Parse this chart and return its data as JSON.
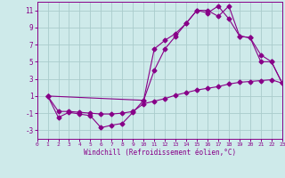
{
  "bg_color": "#ceeaea",
  "grid_color": "#aacccc",
  "line_color": "#880088",
  "xlabel": "Windchill (Refroidissement éolien,°C)",
  "ylim": [
    -4,
    12
  ],
  "xlim": [
    0,
    23
  ],
  "yticks": [
    -3,
    -1,
    1,
    3,
    5,
    7,
    9,
    11
  ],
  "xticks": [
    0,
    1,
    2,
    3,
    4,
    5,
    6,
    7,
    8,
    9,
    10,
    11,
    12,
    13,
    14,
    15,
    16,
    17,
    18,
    19,
    20,
    21,
    22,
    23
  ],
  "line1_x": [
    1,
    2,
    3,
    4,
    5,
    6,
    7,
    8,
    9,
    10,
    11,
    12,
    13,
    14,
    15,
    16,
    17,
    18,
    19,
    20,
    21,
    22,
    23
  ],
  "line1_y": [
    1.0,
    -1.5,
    -0.9,
    -1.1,
    -1.3,
    -2.7,
    -2.4,
    -2.2,
    -0.9,
    0.5,
    4.0,
    6.5,
    8.0,
    9.5,
    11.0,
    11.0,
    10.3,
    11.5,
    8.0,
    7.8,
    5.0,
    5.0,
    2.5
  ],
  "line2_x": [
    1,
    2,
    3,
    4,
    5,
    6,
    7,
    8,
    9,
    10,
    11,
    12,
    13,
    14,
    15,
    16,
    17,
    18,
    19,
    20,
    21,
    22,
    23
  ],
  "line2_y": [
    1.0,
    -0.8,
    -0.8,
    -0.9,
    -1.0,
    -1.1,
    -1.1,
    -1.0,
    -0.8,
    0.1,
    0.4,
    0.7,
    1.1,
    1.4,
    1.7,
    1.9,
    2.1,
    2.4,
    2.6,
    2.7,
    2.8,
    2.9,
    2.5
  ],
  "line3_x": [
    1,
    10,
    11,
    12,
    13,
    14,
    15,
    16,
    17,
    18,
    19,
    20,
    21,
    22,
    23
  ],
  "line3_y": [
    1.0,
    0.5,
    6.5,
    7.5,
    8.3,
    9.5,
    11.0,
    10.7,
    11.5,
    10.0,
    8.0,
    7.8,
    5.8,
    5.0,
    2.5
  ]
}
